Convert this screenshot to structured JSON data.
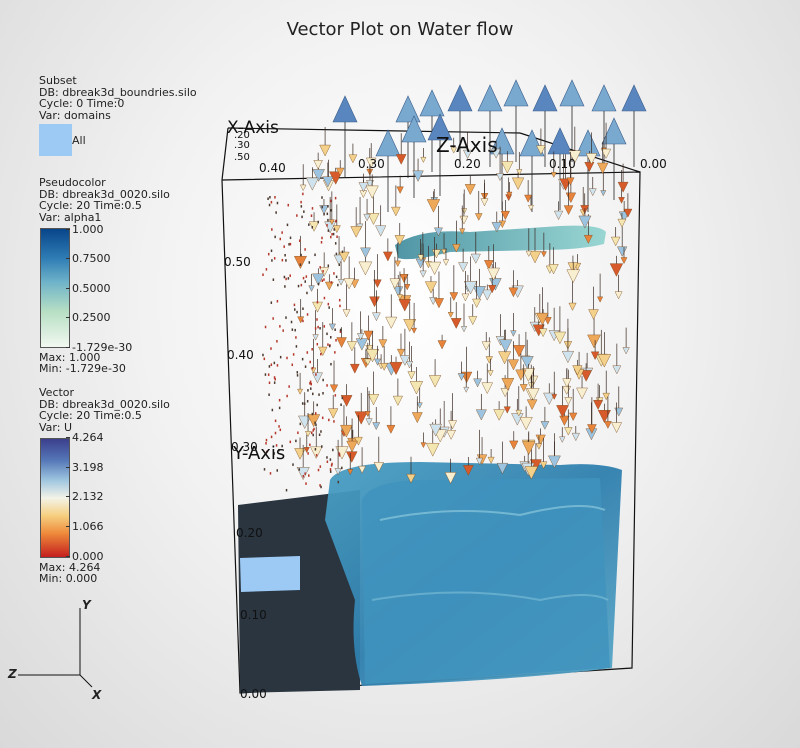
{
  "title": "Vector Plot on Water flow",
  "subset_legend": {
    "heading": "Subset",
    "db": "DB: dbreak3d_boundries.silo",
    "cycle_line": "Cycle: 0      Time:0",
    "var": "Var: domains",
    "swatch_color": "#9ccaf5",
    "swatch_label": "All"
  },
  "pseudocolor_legend": {
    "heading": "Pseudocolor",
    "db": "DB: dbreak3d_0020.silo",
    "cycle_line": "Cycle: 20      Time:0.5",
    "var": "Var: alpha1",
    "ticks": [
      "1.000",
      "0.7500",
      "0.5000",
      "0.2500",
      "-1.729e-30"
    ],
    "max": "Max:  1.000",
    "min": "Min:  -1.729e-30"
  },
  "vector_legend": {
    "heading": "Vector",
    "db": "DB: dbreak3d_0020.silo",
    "cycle_line": "Cycle: 20      Time:0.5",
    "var": "Var: U",
    "ticks": [
      "4.264",
      "3.198",
      "2.132",
      "1.066",
      "0.000"
    ],
    "max": "Max:  4.264",
    "min": "Min:  0.000"
  },
  "axes": {
    "x_axis_title": "X-Axis",
    "y_axis_title": "Y-Axis",
    "z_axis_title": "Z-Axis",
    "x_ticks": [
      "0.00",
      "0.10",
      "0.20",
      "0.30",
      "0.40"
    ],
    "y_ticks": [
      "0.00",
      "0.10",
      "0.20",
      "0.30",
      "0.40",
      "0.50"
    ],
    "z_ticks": [
      ".20",
      ".30",
      ".50"
    ]
  },
  "triad": {
    "x": "X",
    "y": "Y",
    "z": "Z"
  }
}
